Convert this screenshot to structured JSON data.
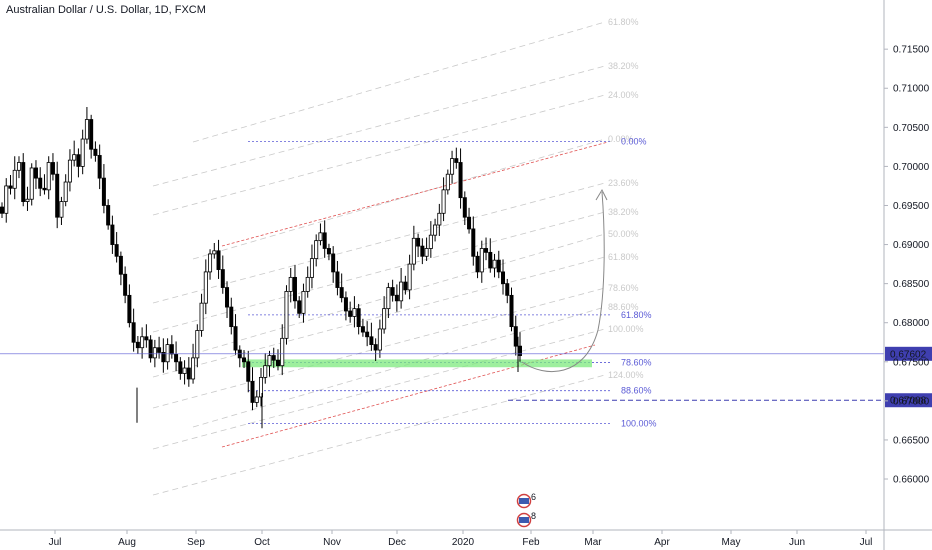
{
  "title": "Australian Dollar / U.S. Dollar, 1D, FXCM",
  "colors": {
    "up": "#ffffff",
    "down": "#000000",
    "wick": "#000000",
    "fib": "#5b5bd6",
    "fib_faint": "#c9c9c9",
    "channel": "#e05252",
    "current_price": "#5b5bd6",
    "zone": "#7dea7d",
    "price_badge": "#3f3fb0",
    "axis_text": "#131722"
  },
  "chart_data": {
    "type": "candlestick",
    "x_labels": [
      "Jul",
      "Aug",
      "Sep",
      "Oct",
      "Nov",
      "Dec",
      "2020",
      "Feb",
      "Mar",
      "Apr",
      "May",
      "Jun",
      "Jul"
    ],
    "y_ticks": [
      "0.71500",
      "0.71000",
      "0.70500",
      "0.70000",
      "0.69500",
      "0.69000",
      "0.68500",
      "0.68000",
      "0.67500",
      "0.67000",
      "0.66500",
      "0.66000"
    ],
    "y_tick_values": [
      0.715,
      0.71,
      0.705,
      0.7,
      0.695,
      0.69,
      0.685,
      0.68,
      0.675,
      0.67,
      0.665,
      0.66
    ],
    "ylim": [
      0.6545,
      0.7195
    ],
    "current_price": "0.67602",
    "current_price_value": 0.67602,
    "target_price": "0.67008",
    "target_price_value": 0.67008,
    "support_zone": [
      0.6743,
      0.6753
    ],
    "close_path": [
      0.694,
      0.6975,
      0.6972,
      0.6995,
      0.7005,
      0.6955,
      0.6958,
      0.6998,
      0.6985,
      0.6972,
      0.697,
      0.7005,
      0.699,
      0.6935,
      0.6955,
      0.698,
      0.7008,
      0.7015,
      0.7,
      0.7035,
      0.706,
      0.7022,
      0.7014,
      0.6985,
      0.695,
      0.6925,
      0.69,
      0.6885,
      0.6862,
      0.6835,
      0.68,
      0.6775,
      0.6768,
      0.6782,
      0.6778,
      0.6755,
      0.6768,
      0.6762,
      0.675,
      0.6772,
      0.676,
      0.675,
      0.6735,
      0.6742,
      0.6728,
      0.6755,
      0.679,
      0.6825,
      0.6865,
      0.6888,
      0.6892,
      0.6868,
      0.6845,
      0.682,
      0.6795,
      0.6765,
      0.6755,
      0.675,
      0.6725,
      0.6698,
      0.6705,
      0.673,
      0.6745,
      0.6758,
      0.6752,
      0.6745,
      0.678,
      0.684,
      0.6858,
      0.6828,
      0.6812,
      0.684,
      0.6858,
      0.6882,
      0.6905,
      0.6915,
      0.6895,
      0.6888,
      0.6865,
      0.6845,
      0.6832,
      0.6815,
      0.6808,
      0.6818,
      0.6795,
      0.6788,
      0.6782,
      0.6772,
      0.6765,
      0.6792,
      0.6818,
      0.6845,
      0.6835,
      0.6828,
      0.6852,
      0.6842,
      0.6875,
      0.6908,
      0.6898,
      0.6885,
      0.6895,
      0.6912,
      0.6925,
      0.694,
      0.697,
      0.699,
      0.701,
      0.7005,
      0.696,
      0.6935,
      0.692,
      0.6885,
      0.6865,
      0.6895,
      0.689,
      0.687,
      0.688,
      0.6865,
      0.685,
      0.6835,
      0.6795,
      0.677,
      0.6758
    ],
    "fib_levels_left": [
      {
        "label": "0.00%",
        "value": 0.7032
      },
      {
        "label": "61.80%",
        "value": 0.681
      },
      {
        "label": "78.60%",
        "value": 0.6749
      },
      {
        "label": "88.60%",
        "value": 0.6713
      },
      {
        "label": "100.00%",
        "value": 0.6671
      }
    ],
    "fib_levels_channel": [
      "61.80%",
      "38.20%",
      "24.00%",
      "0.00%",
      "23.60%",
      "38.20%",
      "50.00%",
      "61.80%",
      "78.60%",
      "88.60%",
      "100.00%",
      "124.00%"
    ],
    "annotations": [
      {
        "label": "6",
        "type": "event-icon"
      },
      {
        "label": "8",
        "type": "event-icon"
      }
    ]
  }
}
